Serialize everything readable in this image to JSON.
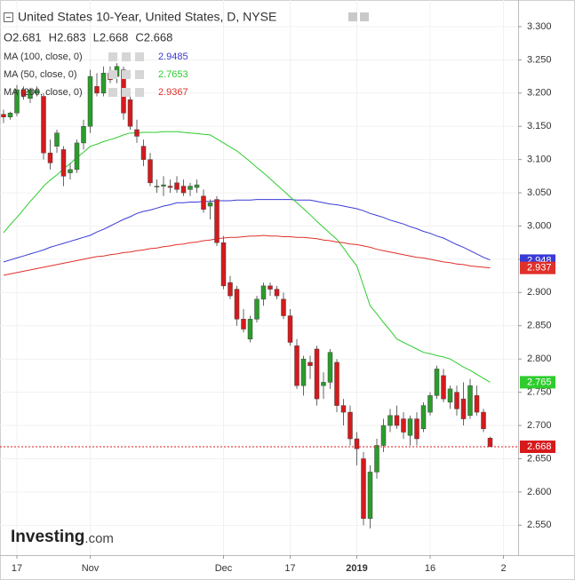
{
  "chart_data": {
    "type": "candlestick",
    "title": "United States 10-Year, United States, D, NYSE",
    "ohlc": [
      {
        "label": "O",
        "value": 2.681
      },
      {
        "label": "H",
        "value": 2.683
      },
      {
        "label": "L",
        "value": 2.668
      },
      {
        "label": "C",
        "value": 2.668
      }
    ],
    "categories": [
      null,
      null,
      "17",
      null,
      null,
      null,
      null,
      null,
      null,
      null,
      null,
      null,
      null,
      "Nov",
      null,
      null,
      null,
      null,
      null,
      null,
      null,
      null,
      null,
      null,
      null,
      null,
      null,
      null,
      null,
      null,
      null,
      null,
      null,
      "Dec",
      null,
      null,
      null,
      null,
      null,
      null,
      null,
      null,
      null,
      "17",
      null,
      null,
      null,
      null,
      null,
      null,
      null,
      null,
      null,
      "2019",
      null,
      null,
      null,
      null,
      null,
      null,
      null,
      null,
      null,
      null,
      "16",
      null,
      null,
      null,
      null,
      null,
      null,
      null,
      null,
      null,
      null,
      "2"
    ],
    "candles": {
      "up_color": "#2a9d2a",
      "down_color": "#d7191c",
      "open": [
        3.168,
        3.164,
        3.17,
        3.205,
        3.192,
        3.2,
        3.195,
        3.11,
        3.12,
        3.115,
        3.08,
        3.085,
        3.125,
        3.15,
        3.21,
        3.2,
        3.23,
        3.225,
        3.235,
        3.19,
        3.145,
        3.12,
        3.1,
        3.06,
        3.06,
        3.06,
        3.065,
        3.06,
        3.055,
        3.058,
        3.045,
        3.03,
        3.04,
        2.975,
        2.915,
        2.905,
        2.86,
        2.83,
        2.86,
        2.89,
        2.91,
        2.905,
        2.89,
        2.865,
        2.82,
        2.76,
        2.795,
        2.815,
        2.76,
        2.765,
        2.795,
        2.73,
        2.72,
        2.68,
        2.65,
        2.56,
        2.63,
        2.67,
        2.7,
        2.715,
        2.71,
        2.685,
        2.71,
        2.695,
        2.72,
        2.745,
        2.775,
        2.735,
        2.75,
        2.74,
        2.715,
        2.745,
        2.72,
        2.681,
        null,
        null
      ],
      "high": [
        3.175,
        3.172,
        3.212,
        3.21,
        3.208,
        3.21,
        3.2,
        3.13,
        3.145,
        3.12,
        3.095,
        3.13,
        3.16,
        3.235,
        3.23,
        3.24,
        3.24,
        3.245,
        3.24,
        3.195,
        3.16,
        3.13,
        3.11,
        3.07,
        3.075,
        3.07,
        3.075,
        3.07,
        3.065,
        3.07,
        3.055,
        3.04,
        3.045,
        2.985,
        2.925,
        2.91,
        2.875,
        2.865,
        2.895,
        2.915,
        2.915,
        2.91,
        2.9,
        2.875,
        2.83,
        2.805,
        2.805,
        2.82,
        2.78,
        2.815,
        2.8,
        2.74,
        2.73,
        2.69,
        2.66,
        2.64,
        2.68,
        2.71,
        2.725,
        2.73,
        2.72,
        2.715,
        2.72,
        2.735,
        2.75,
        2.79,
        2.785,
        2.76,
        2.76,
        2.765,
        2.77,
        2.76,
        2.725,
        2.683,
        null,
        null
      ],
      "low": [
        3.155,
        3.16,
        3.165,
        3.19,
        3.185,
        3.195,
        3.1,
        3.085,
        3.11,
        3.06,
        3.07,
        3.08,
        3.115,
        3.14,
        3.195,
        3.195,
        3.215,
        3.215,
        3.16,
        3.145,
        3.125,
        3.09,
        3.06,
        3.05,
        3.045,
        3.05,
        3.05,
        3.045,
        3.045,
        3.05,
        3.02,
        3.01,
        2.97,
        2.905,
        2.89,
        2.85,
        2.84,
        2.825,
        2.855,
        2.88,
        2.895,
        2.89,
        2.86,
        2.82,
        2.755,
        2.745,
        2.77,
        2.73,
        2.74,
        2.755,
        2.72,
        2.7,
        2.67,
        2.64,
        2.55,
        2.545,
        2.62,
        2.66,
        2.69,
        2.695,
        2.68,
        2.67,
        2.67,
        2.69,
        2.715,
        2.74,
        2.735,
        2.725,
        2.715,
        2.7,
        2.71,
        2.715,
        2.69,
        2.668,
        null,
        null
      ],
      "close": [
        3.164,
        3.17,
        3.205,
        3.195,
        3.205,
        3.204,
        3.11,
        3.095,
        3.14,
        3.075,
        3.085,
        3.125,
        3.15,
        3.225,
        3.2,
        3.23,
        3.22,
        3.24,
        3.17,
        3.15,
        3.135,
        3.1,
        3.065,
        3.06,
        3.062,
        3.058,
        3.055,
        3.05,
        3.06,
        3.062,
        3.025,
        3.035,
        2.975,
        2.91,
        2.895,
        2.86,
        2.845,
        2.86,
        2.89,
        2.91,
        2.905,
        2.895,
        2.865,
        2.825,
        2.76,
        2.8,
        2.79,
        2.74,
        2.765,
        2.81,
        2.73,
        2.72,
        2.68,
        2.665,
        2.56,
        2.63,
        2.67,
        2.7,
        2.715,
        2.7,
        2.69,
        2.71,
        2.68,
        2.73,
        2.745,
        2.785,
        2.74,
        2.755,
        2.725,
        2.71,
        2.76,
        2.72,
        2.695,
        2.668,
        null,
        null
      ]
    },
    "last_price": 2.668,
    "last_price_color": "#d7191c",
    "series": [
      {
        "name": "MA (100, close, 0)",
        "color": "#3a3ad6",
        "legend_value": 2.9485,
        "last_label": 2.948,
        "values": [
          2.946,
          2.949,
          2.952,
          2.955,
          2.958,
          2.961,
          2.964,
          2.968,
          2.971,
          2.974,
          2.977,
          2.98,
          2.983,
          2.986,
          2.991,
          2.995,
          3.0,
          3.005,
          3.01,
          3.014,
          3.019,
          3.022,
          3.024,
          3.027,
          3.03,
          3.032,
          3.035,
          3.035,
          3.036,
          3.036,
          3.037,
          3.037,
          3.038,
          3.038,
          3.038,
          3.039,
          3.039,
          3.039,
          3.04,
          3.04,
          3.04,
          3.04,
          3.04,
          3.04,
          3.039,
          3.039,
          3.039,
          3.037,
          3.035,
          3.033,
          3.032,
          3.03,
          3.028,
          3.026,
          3.023,
          3.019,
          3.016,
          3.013,
          3.009,
          3.006,
          3.003,
          2.999,
          2.996,
          2.992,
          2.989,
          2.985,
          2.982,
          2.977,
          2.972,
          2.968,
          2.963,
          2.958,
          2.953,
          2.949,
          null,
          null
        ]
      },
      {
        "name": "MA (50, close, 0)",
        "color": "#2ecc2e",
        "legend_value": 2.7653,
        "last_label": 2.765,
        "values": [
          2.99,
          3.002,
          3.013,
          3.025,
          3.037,
          3.048,
          3.06,
          3.069,
          3.077,
          3.086,
          3.094,
          3.103,
          3.111,
          3.12,
          3.123,
          3.127,
          3.13,
          3.133,
          3.137,
          3.14,
          3.14,
          3.141,
          3.141,
          3.141,
          3.142,
          3.142,
          3.142,
          3.141,
          3.14,
          3.139,
          3.138,
          3.137,
          3.131,
          3.125,
          3.119,
          3.113,
          3.105,
          3.097,
          3.088,
          3.08,
          3.071,
          3.062,
          3.053,
          3.044,
          3.035,
          3.026,
          3.017,
          3.007,
          2.998,
          2.989,
          2.98,
          2.967,
          2.953,
          2.94,
          2.91,
          2.88,
          2.868,
          2.855,
          2.843,
          2.83,
          2.825,
          2.82,
          2.815,
          2.81,
          2.808,
          2.805,
          2.803,
          2.8,
          2.794,
          2.788,
          2.783,
          2.777,
          2.771,
          2.765,
          null,
          null
        ]
      },
      {
        "name": "MA (200, close, 0)",
        "color": "#e0302a",
        "legend_value": 2.9367,
        "last_label": 2.937,
        "values": [
          2.926,
          2.928,
          2.93,
          2.932,
          2.934,
          2.936,
          2.938,
          2.94,
          2.942,
          2.944,
          2.946,
          2.948,
          2.95,
          2.952,
          2.954,
          2.955,
          2.957,
          2.958,
          2.96,
          2.961,
          2.963,
          2.964,
          2.966,
          2.967,
          2.969,
          2.97,
          2.972,
          2.973,
          2.975,
          2.976,
          2.978,
          2.979,
          2.981,
          2.982,
          2.983,
          2.983,
          2.984,
          2.985,
          2.985,
          2.986,
          2.985,
          2.985,
          2.984,
          2.984,
          2.983,
          2.983,
          2.982,
          2.981,
          2.979,
          2.978,
          2.976,
          2.975,
          2.973,
          2.972,
          2.97,
          2.968,
          2.965,
          2.963,
          2.961,
          2.959,
          2.957,
          2.955,
          2.953,
          2.952,
          2.95,
          2.948,
          2.946,
          2.945,
          2.943,
          2.942,
          2.94,
          2.939,
          2.938,
          2.937,
          null,
          null
        ]
      }
    ],
    "ylim": [
      2.505,
      3.34
    ],
    "yticks": [
      {
        "value": 2.55,
        "label": "2.550"
      },
      {
        "value": 2.6,
        "label": "2.600"
      },
      {
        "value": 2.65,
        "label": "2.650"
      },
      {
        "value": 2.7,
        "label": "2.700"
      },
      {
        "value": 2.75,
        "label": "2.750"
      },
      {
        "value": 2.8,
        "label": "2.800"
      },
      {
        "value": 2.85,
        "label": "2.850"
      },
      {
        "value": 2.9,
        "label": "2.900"
      },
      {
        "value": 2.95,
        "label": "2.950"
      },
      {
        "value": 3.0,
        "label": "3.000"
      },
      {
        "value": 3.05,
        "label": "3.050"
      },
      {
        "value": 3.1,
        "label": "3.100"
      },
      {
        "value": 3.15,
        "label": "3.150"
      },
      {
        "value": 3.2,
        "label": "3.200"
      },
      {
        "value": 3.25,
        "label": "3.250"
      },
      {
        "value": 3.3,
        "label": "3.300"
      }
    ],
    "grid": true,
    "brand": [
      "Investing",
      ".com"
    ]
  }
}
